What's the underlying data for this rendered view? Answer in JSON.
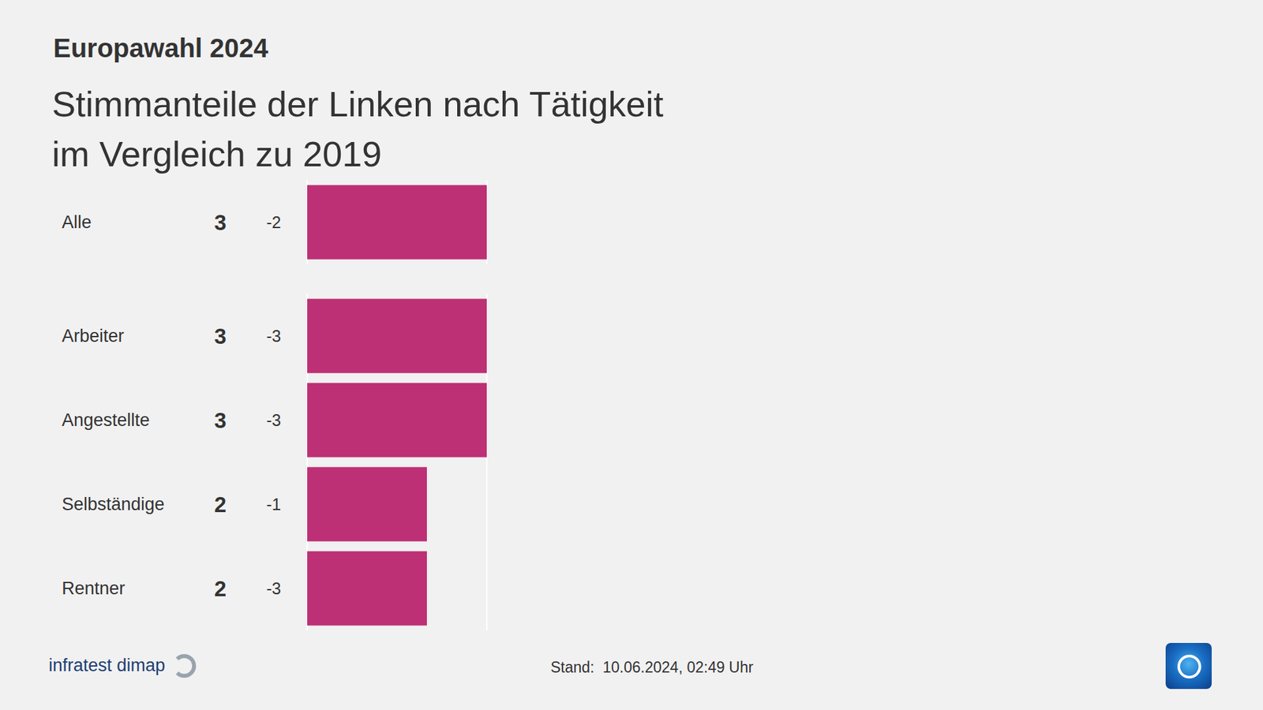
{
  "chart_data": {
    "type": "bar",
    "orientation": "horizontal",
    "title": "Europawahl 2024",
    "subtitle": "Stimmanteile der Linken nach Tätigkeit\nim Vergleich zu 2019",
    "categories": [
      "Alle",
      "Arbeiter",
      "Angestellte",
      "Selbständige",
      "Rentner"
    ],
    "values": [
      3,
      3,
      3,
      2,
      2
    ],
    "changes": [
      -2,
      -3,
      -3,
      -1,
      -3
    ],
    "color": "#bd3075",
    "xlim": [
      0,
      3
    ],
    "xticks": [
      0,
      3
    ],
    "grid": true,
    "tick_labels": false,
    "data_labels": true,
    "source": "infratest dimap",
    "note": "Stand:  10.06.2024, 02:49 Uhr"
  }
}
